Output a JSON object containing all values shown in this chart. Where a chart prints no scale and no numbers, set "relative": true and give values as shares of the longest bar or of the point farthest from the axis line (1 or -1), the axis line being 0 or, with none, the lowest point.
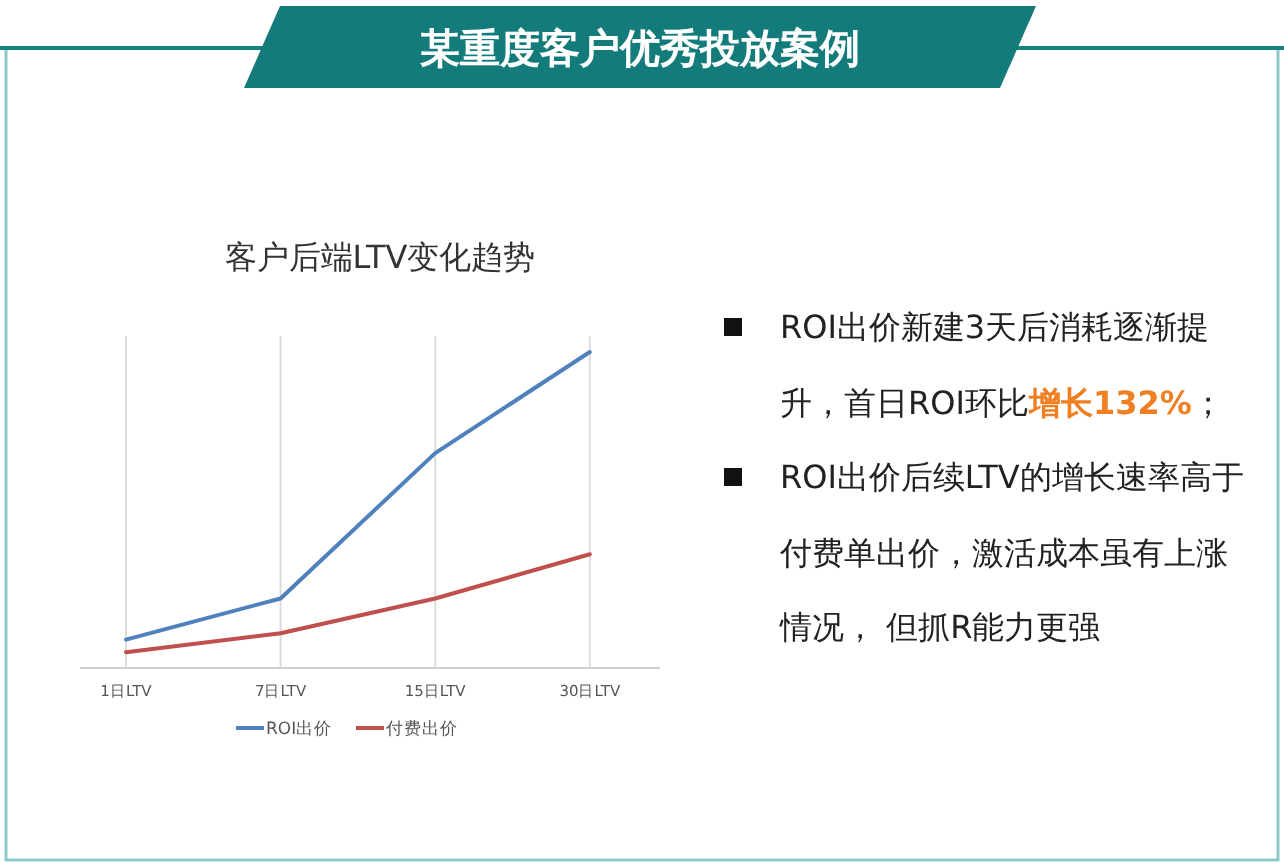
{
  "chart_data": {
    "type": "line",
    "title": "某重度客户优秀投放案例",
    "subtitle": "客户后端LTV变化趋势",
    "categories": [
      "1日LTV",
      "7日LTV",
      "15日LTV",
      "30日LTV"
    ],
    "relative": true,
    "grid": "x",
    "legend": "bottom",
    "series": [
      {
        "name": "ROI出价",
        "color": "#4f81bd",
        "values": [
          0.09,
          0.22,
          0.68,
          1
        ]
      },
      {
        "name": "付费出价",
        "color": "#c0504d",
        "values": [
          0.05,
          0.11,
          0.22,
          0.36
        ]
      }
    ],
    "annotations": [
      "ROI出价新建3天后消耗逐渐提升，首日ROI环比",
      "增长132%",
      "；",
      "ROI出价后续LTV的增长速率高于付费单出价，激活成本虽有上涨情况， 但抓R能力更强"
    ]
  }
}
